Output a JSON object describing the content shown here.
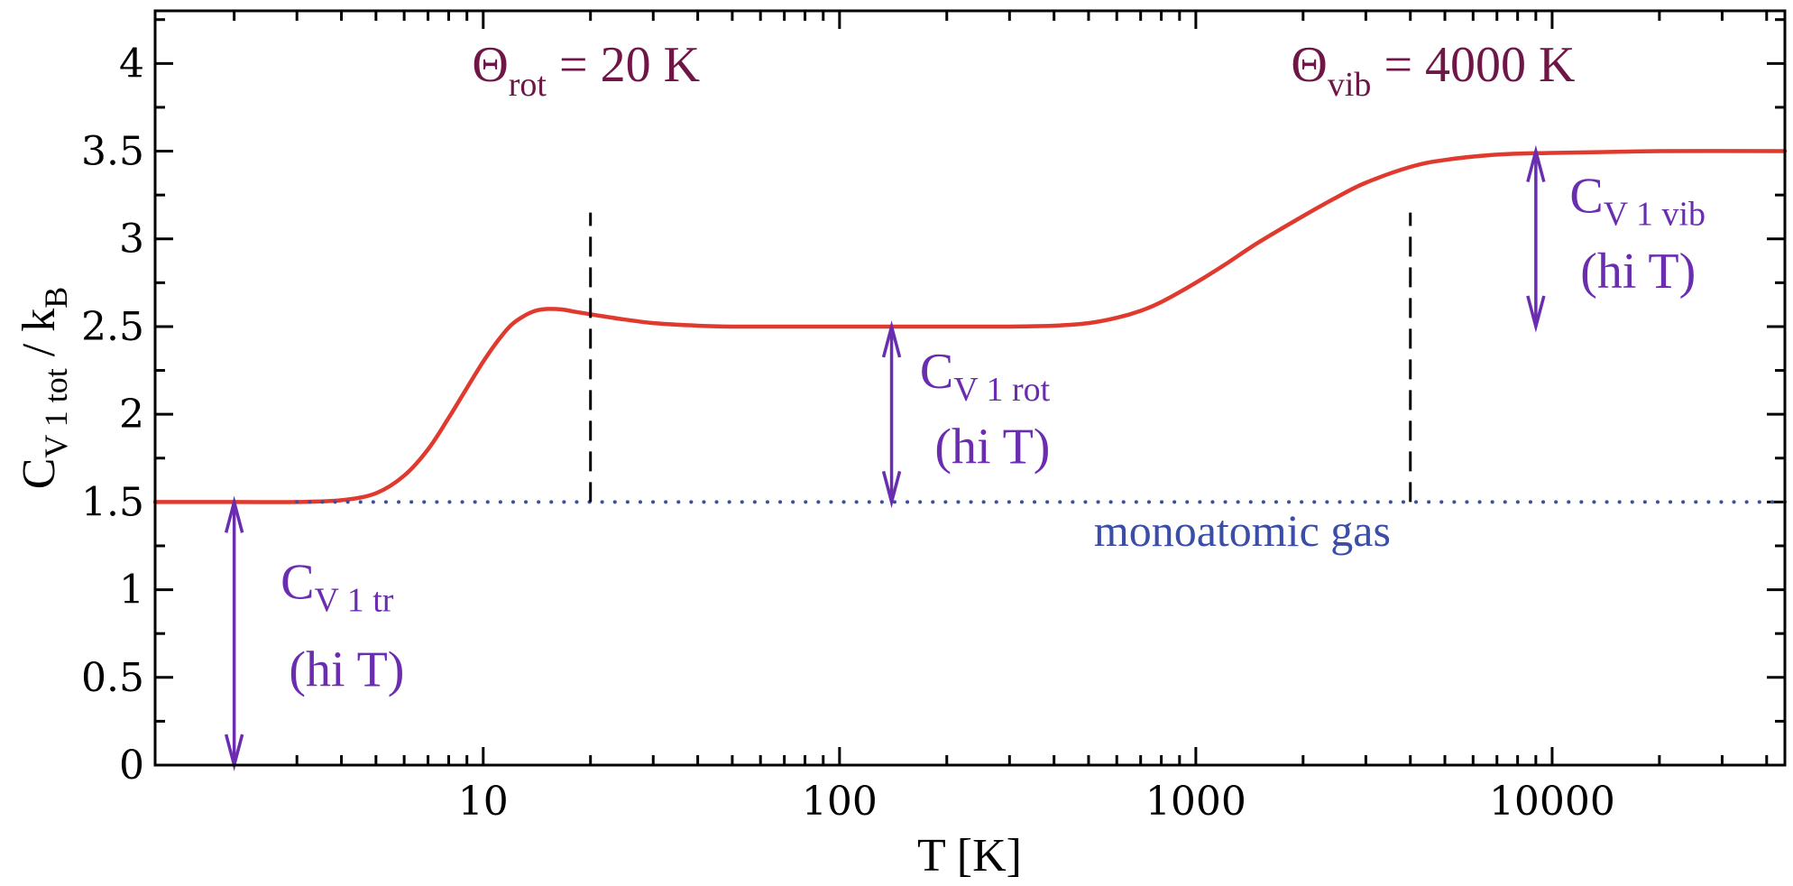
{
  "chart_data": {
    "type": "line",
    "xscale": "log",
    "xlim": [
      1.2,
      45000
    ],
    "ylim": [
      0,
      4.3
    ],
    "xticks": [
      10,
      100,
      1000,
      10000
    ],
    "xtick_labels": [
      "10",
      "100",
      "1000",
      "10000"
    ],
    "yticks": [
      0,
      0.5,
      1,
      1.5,
      2,
      2.5,
      3,
      3.5,
      4
    ],
    "ytick_labels": [
      "0",
      "0.5",
      "1",
      "1.5",
      "2",
      "2.5",
      "3",
      "3.5",
      "4"
    ],
    "xlabel": "T  [K]",
    "ylabel": {
      "main": "C",
      "sub1": "V 1 tot",
      "sep": " / k",
      "sub2": "B"
    },
    "grid": false,
    "series": [
      {
        "name": "",
        "color": "#e03a2f",
        "style": "solid",
        "x": [
          1.2,
          2,
          3,
          4,
          5,
          6,
          7,
          8,
          9,
          10,
          11,
          12,
          13,
          14,
          15,
          16,
          17,
          18,
          20,
          25,
          30,
          40,
          50,
          70,
          100,
          200,
          300,
          400,
          500,
          600,
          700,
          800,
          1000,
          1200,
          1500,
          2000,
          2500,
          3000,
          4000,
          5000,
          7000,
          10000,
          20000,
          45000
        ],
        "y": [
          1.5,
          1.5,
          1.5,
          1.51,
          1.55,
          1.65,
          1.8,
          1.98,
          2.15,
          2.3,
          2.42,
          2.51,
          2.56,
          2.59,
          2.6,
          2.6,
          2.595,
          2.585,
          2.57,
          2.54,
          2.52,
          2.505,
          2.5,
          2.5,
          2.5,
          2.5,
          2.5,
          2.505,
          2.52,
          2.55,
          2.59,
          2.64,
          2.75,
          2.85,
          2.98,
          3.13,
          3.24,
          3.32,
          3.41,
          3.45,
          3.48,
          3.49,
          3.5,
          3.5
        ]
      },
      {
        "name": "monoatomic gas",
        "color": "#3a4ea8",
        "style": "dotted",
        "x": [
          3,
          45000
        ],
        "y": [
          1.5,
          1.5
        ]
      }
    ],
    "vlines": [
      {
        "x": 20,
        "y0": 1.5,
        "y1": 3.15,
        "label_main": "Θ",
        "label_sub": "rot",
        "label_rest": " = 20 K",
        "label_x": 9.3,
        "label_y": 3.9
      },
      {
        "x": 4000,
        "y0": 1.5,
        "y1": 3.15,
        "label_main": "Θ",
        "label_sub": "vib",
        "label_rest": " = 4000 K",
        "label_x": 1850,
        "label_y": 3.9
      }
    ],
    "arrows": [
      {
        "x": 2,
        "y0": 0,
        "y1": 1.5,
        "label_main": "C",
        "label_sub": "V 1 tr",
        "label_line2": "(hi T)",
        "label_x": 2.7,
        "label_y": 0.95,
        "line2_x": 2.85,
        "line2_y": 0.45
      },
      {
        "x": 140,
        "y0": 1.5,
        "y1": 2.5,
        "label_main": "C",
        "label_sub": "V 1 rot",
        "label_line2": "(hi T)",
        "label_x": 168,
        "label_y": 2.15,
        "line2_x": 185,
        "line2_y": 1.72
      },
      {
        "x": 9000,
        "y0": 2.5,
        "y1": 3.5,
        "label_main": "C",
        "label_sub": "V 1 vib",
        "label_line2": "(hi T)",
        "label_x": 11200,
        "label_y": 3.15,
        "line2_x": 12000,
        "line2_y": 2.72
      }
    ],
    "annotations": [
      {
        "text": "monoatomic gas",
        "x": 1350,
        "y": 1.25,
        "color": "#3a4ea8"
      }
    ],
    "colors": {
      "curve": "#e03a2f",
      "dotted": "#3a4ea8",
      "arrow": "#6a2db0",
      "theta": "#6e1646",
      "axis": "#000000"
    }
  }
}
